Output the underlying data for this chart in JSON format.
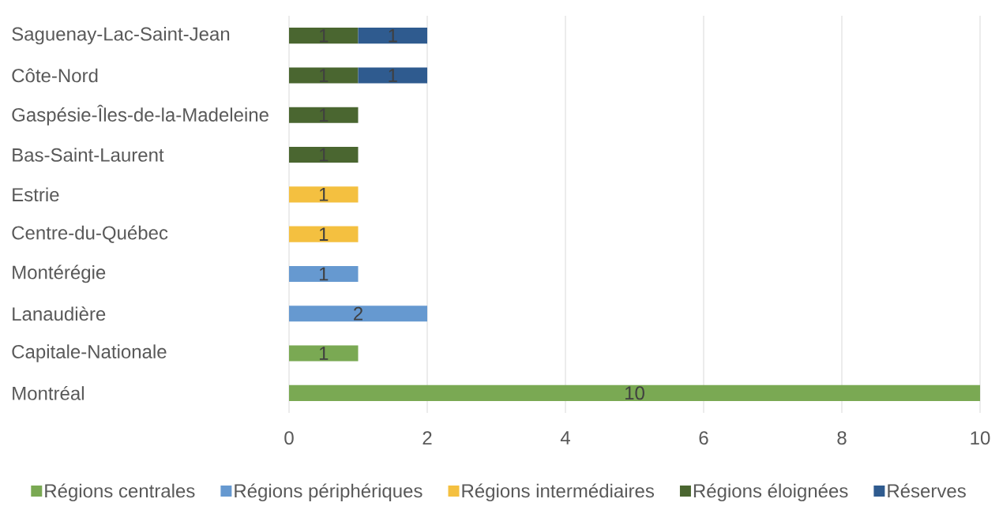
{
  "chart_data": {
    "type": "bar",
    "orientation": "horizontal",
    "stacked": true,
    "categories": [
      "Saguenay-Lac-Saint-Jean",
      "Côte-Nord",
      "Gaspésie-Îles-de-la-Madeleine",
      "Bas-Saint-Laurent",
      "Estrie",
      "Centre-du-Québec",
      "Montérégie",
      "Lanaudière",
      "Capitale-Nationale",
      "Montréal"
    ],
    "series": [
      {
        "name": "Régions centrales",
        "color": "#7aa953",
        "values": [
          null,
          null,
          null,
          null,
          null,
          null,
          null,
          null,
          1,
          10
        ]
      },
      {
        "name": "Régions périphériques",
        "color": "#6699d0",
        "values": [
          null,
          null,
          null,
          null,
          null,
          null,
          1,
          2,
          null,
          null
        ]
      },
      {
        "name": "Régions intermédiaires",
        "color": "#f4c040",
        "values": [
          null,
          null,
          null,
          null,
          1,
          1,
          null,
          null,
          null,
          null
        ]
      },
      {
        "name": "Régions éloignées",
        "color": "#4a6630",
        "values": [
          1,
          1,
          1,
          1,
          null,
          null,
          null,
          null,
          null,
          null
        ]
      },
      {
        "name": "Réserves",
        "color": "#2f5b8f",
        "values": [
          1,
          1,
          null,
          null,
          null,
          null,
          null,
          null,
          null,
          null
        ]
      }
    ],
    "xlim": [
      0,
      10
    ],
    "xticks": [
      0,
      2,
      4,
      6,
      8,
      10
    ],
    "grid": "x",
    "legend": "bottom",
    "data_labels": true
  }
}
